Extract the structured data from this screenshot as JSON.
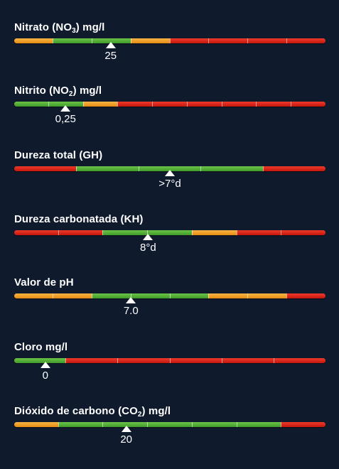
{
  "params": [
    {
      "id": "nitrate",
      "title": {
        "pre": "Nitrato (NO",
        "sub": "3",
        "post": ") mg/l"
      },
      "segments": [
        "orange",
        "green",
        "green",
        "orange",
        "red",
        "red",
        "red",
        "red"
      ],
      "marker": {
        "value": "25",
        "position": 0.31
      }
    },
    {
      "id": "nitrite",
      "title": {
        "pre": "Nitrito (NO",
        "sub": "2",
        "post": ") mg/l"
      },
      "segments": [
        "green",
        "green",
        "orange",
        "red",
        "red",
        "red",
        "red",
        "red",
        "red"
      ],
      "marker": {
        "value": "0,25",
        "position": 0.165
      }
    },
    {
      "id": "gh",
      "title": {
        "pre": "Dureza total (GH)",
        "sub": "",
        "post": ""
      },
      "segments": [
        "red",
        "green",
        "green",
        "green",
        "red"
      ],
      "marker": {
        "value": ">7°d",
        "position": 0.5
      }
    },
    {
      "id": "kh",
      "title": {
        "pre": "Dureza carbonatada (KH)",
        "sub": "",
        "post": ""
      },
      "segments": [
        "red",
        "red",
        "green",
        "green",
        "orange",
        "red",
        "red"
      ],
      "marker": {
        "value": "8°d",
        "position": 0.43
      }
    },
    {
      "id": "ph",
      "title": {
        "pre": "Valor de pH",
        "sub": "",
        "post": ""
      },
      "segments": [
        "orange",
        "orange",
        "green",
        "green",
        "green",
        "orange",
        "orange",
        "red"
      ],
      "marker": {
        "value": "7.0",
        "position": 0.375
      }
    },
    {
      "id": "chlorine",
      "title": {
        "pre": "Cloro mg/l",
        "sub": "",
        "post": ""
      },
      "segments": [
        "green",
        "red",
        "red",
        "red",
        "red",
        "red"
      ],
      "marker": {
        "value": "0",
        "position": 0.1
      }
    },
    {
      "id": "co2",
      "title": {
        "pre": "Dióxido de carbono (CO",
        "sub": "2",
        "post": ") mg/l"
      },
      "segments": [
        "orange",
        "green",
        "green",
        "green",
        "green",
        "green",
        "red"
      ],
      "marker": {
        "value": "20",
        "position": 0.36
      }
    }
  ]
}
